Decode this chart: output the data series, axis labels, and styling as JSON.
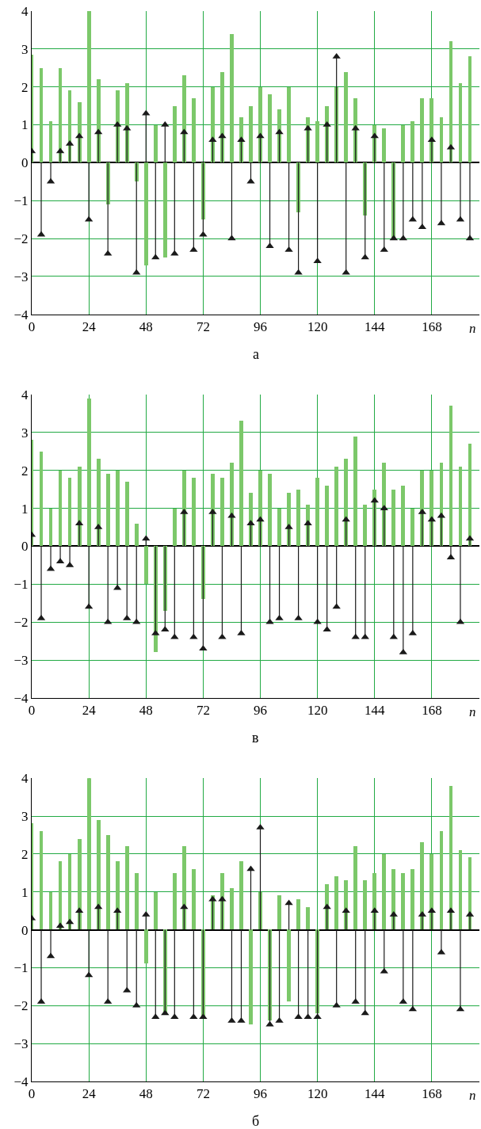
{
  "chart_data": [
    {
      "type": "bar",
      "title": "а",
      "xlabel": "n",
      "xlim": [
        0,
        188
      ],
      "xticks": [
        0,
        24,
        48,
        72,
        96,
        120,
        144,
        168
      ],
      "ylim": [
        -4,
        4
      ],
      "yticks": [
        -4,
        -3,
        -2,
        -1,
        0,
        1,
        2,
        3,
        4
      ],
      "grid": true,
      "marker": "triangle",
      "x": [
        0,
        4,
        8,
        12,
        16,
        20,
        24,
        28,
        32,
        36,
        40,
        44,
        48,
        52,
        56,
        60,
        64,
        68,
        72,
        76,
        80,
        84,
        88,
        92,
        96,
        100,
        104,
        108,
        112,
        116,
        120,
        124,
        128,
        132,
        136,
        140,
        144,
        148,
        152,
        156,
        160,
        164,
        168,
        172,
        176,
        180,
        184
      ],
      "series": [
        {
          "color": "#7cc86a",
          "values": [
            2.85,
            2.5,
            1.1,
            2.5,
            1.9,
            1.6,
            4.0,
            2.2,
            -1.1,
            1.9,
            2.1,
            -0.5,
            -2.7,
            1.0,
            -2.5,
            1.5,
            2.3,
            1.7,
            -1.5,
            2.0,
            2.4,
            3.4,
            1.2,
            1.5,
            2.0,
            1.8,
            1.4,
            2.0,
            -1.3,
            1.2,
            1.1,
            1.5,
            2.0,
            2.4,
            1.7,
            -1.4,
            1.0,
            0.9,
            -2.0,
            1.0,
            1.1,
            1.7,
            1.7,
            1.2,
            3.2,
            2.1,
            2.8
          ]
        },
        {
          "type": "lollipop",
          "color": "#1a1a1a",
          "values": [
            0.3,
            -1.9,
            -0.5,
            0.3,
            0.5,
            0.7,
            -1.5,
            0.8,
            -2.4,
            1.0,
            0.9,
            -2.9,
            1.3,
            -2.5,
            1.0,
            -2.4,
            0.8,
            -2.3,
            -1.9,
            0.6,
            0.7,
            -2.0,
            0.6,
            -0.5,
            0.7,
            -2.2,
            0.8,
            -2.3,
            -2.9,
            0.9,
            -2.6,
            1.0,
            2.8,
            -2.9,
            0.9,
            -2.5,
            0.7,
            -2.3,
            -2.0,
            -2.0,
            -1.5,
            -1.7,
            0.6,
            -1.6,
            0.4,
            -1.5,
            -2.0
          ]
        }
      ]
    },
    {
      "type": "bar",
      "title": "в",
      "xlabel": "n",
      "xlim": [
        0,
        188
      ],
      "xticks": [
        0,
        24,
        48,
        72,
        96,
        120,
        144,
        168
      ],
      "ylim": [
        -4,
        4
      ],
      "yticks": [
        -4,
        -3,
        -2,
        -1,
        0,
        1,
        2,
        3,
        4
      ],
      "grid": true,
      "marker": "triangle",
      "x": [
        0,
        4,
        8,
        12,
        16,
        20,
        24,
        28,
        32,
        36,
        40,
        44,
        48,
        52,
        56,
        60,
        64,
        68,
        72,
        76,
        80,
        84,
        88,
        92,
        96,
        100,
        104,
        108,
        112,
        116,
        120,
        124,
        128,
        132,
        136,
        140,
        144,
        148,
        152,
        156,
        160,
        164,
        168,
        172,
        176,
        180,
        184
      ],
      "series": [
        {
          "color": "#7cc86a",
          "values": [
            2.8,
            2.5,
            1.0,
            2.0,
            1.8,
            2.1,
            3.9,
            2.3,
            1.9,
            2.0,
            1.7,
            0.6,
            -1.0,
            -2.8,
            -1.7,
            1.0,
            2.0,
            1.8,
            -1.4,
            1.9,
            1.8,
            2.2,
            3.3,
            1.4,
            2.0,
            1.9,
            1.0,
            1.4,
            1.5,
            1.1,
            1.8,
            1.6,
            2.1,
            2.3,
            2.9,
            1.1,
            1.5,
            2.2,
            1.5,
            1.6,
            1.0,
            2.0,
            2.0,
            2.2,
            3.7,
            2.1,
            2.7
          ]
        },
        {
          "type": "lollipop",
          "color": "#1a1a1a",
          "values": [
            0.3,
            -1.9,
            -0.6,
            -0.4,
            -0.5,
            0.6,
            -1.6,
            0.5,
            -2.0,
            -1.1,
            -1.9,
            -2.0,
            0.2,
            -2.3,
            -2.2,
            -2.4,
            0.9,
            -2.4,
            -2.7,
            0.9,
            -2.4,
            0.8,
            -2.3,
            0.6,
            0.7,
            -2.0,
            -1.9,
            0.5,
            -1.9,
            0.6,
            -2.0,
            -2.2,
            -1.6,
            0.7,
            -2.4,
            -2.4,
            1.2,
            1.0,
            -2.4,
            -2.8,
            -2.3,
            0.9,
            0.7,
            0.8,
            -0.3,
            -2.0,
            0.2
          ]
        }
      ]
    },
    {
      "type": "bar",
      "title": "б",
      "xlabel": "n",
      "xlim": [
        0,
        188
      ],
      "xticks": [
        0,
        24,
        48,
        72,
        96,
        120,
        144,
        168
      ],
      "ylim": [
        -4,
        4
      ],
      "yticks": [
        -4,
        -3,
        -2,
        -1,
        0,
        1,
        2,
        3,
        4
      ],
      "grid": true,
      "marker": "triangle",
      "x": [
        0,
        4,
        8,
        12,
        16,
        20,
        24,
        28,
        32,
        36,
        40,
        44,
        48,
        52,
        56,
        60,
        64,
        68,
        72,
        76,
        80,
        84,
        88,
        92,
        96,
        100,
        104,
        108,
        112,
        116,
        120,
        124,
        128,
        132,
        136,
        140,
        144,
        148,
        152,
        156,
        160,
        164,
        168,
        172,
        176,
        180,
        184
      ],
      "series": [
        {
          "color": "#7cc86a",
          "values": [
            2.8,
            2.6,
            1.0,
            1.8,
            2.0,
            2.4,
            4.0,
            2.9,
            2.5,
            1.8,
            2.2,
            1.5,
            -0.9,
            1.0,
            -2.2,
            1.5,
            2.2,
            1.6,
            -2.3,
            0.9,
            1.5,
            1.1,
            1.8,
            -2.5,
            1.0,
            -2.4,
            0.9,
            -1.9,
            0.8,
            0.6,
            -2.2,
            1.2,
            1.4,
            1.3,
            2.2,
            1.3,
            1.5,
            2.0,
            1.6,
            1.5,
            1.6,
            2.3,
            2.0,
            2.6,
            3.8,
            2.1,
            1.9
          ]
        },
        {
          "type": "lollipop",
          "color": "#1a1a1a",
          "values": [
            0.3,
            -1.9,
            -0.7,
            0.1,
            0.2,
            0.5,
            -1.2,
            0.6,
            -1.9,
            0.5,
            -1.6,
            -2.0,
            0.4,
            -2.3,
            -2.2,
            -2.3,
            0.6,
            -2.3,
            -2.3,
            0.8,
            0.8,
            -2.4,
            -2.4,
            1.6,
            2.7,
            -2.5,
            -2.4,
            0.7,
            -2.3,
            -2.3,
            -2.3,
            0.6,
            -2.0,
            0.5,
            -1.9,
            -2.2,
            0.5,
            -1.1,
            0.4,
            -1.9,
            -2.1,
            0.4,
            0.5,
            -0.6,
            0.5,
            -2.1,
            0.4
          ]
        }
      ]
    }
  ]
}
